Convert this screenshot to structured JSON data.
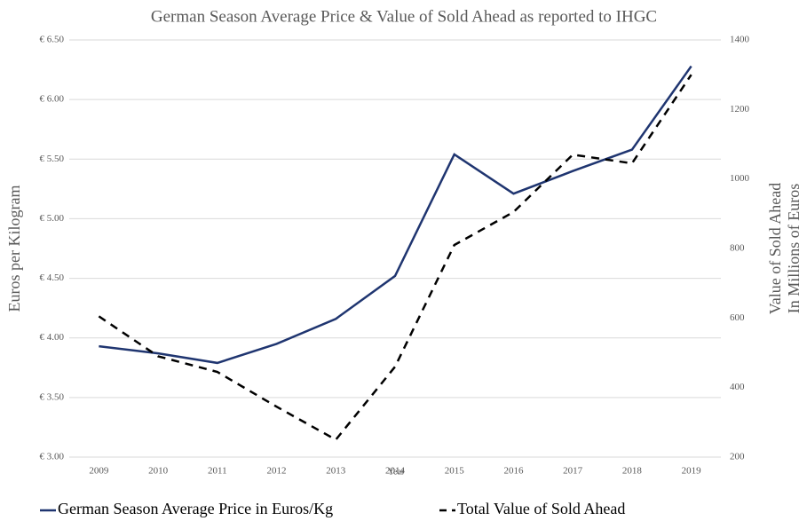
{
  "chart_data": {
    "type": "line",
    "title": "German Season Average Price & Value of Sold Ahead as reported to IHGC",
    "x_label": "Year",
    "y_label": "Euros per Kilogram",
    "y2_label": [
      "Value of Sold Ahead",
      "In Millions of Euros"
    ],
    "categories": [
      "2009",
      "2010",
      "2011",
      "2012",
      "2013",
      "2014",
      "2015",
      "2016",
      "2017",
      "2018",
      "2019"
    ],
    "ylim": [
      3,
      6.5
    ],
    "yticks": [
      {
        "value": 3,
        "label": "€ 3.00"
      },
      {
        "value": 3.5,
        "label": "€ 3.50"
      },
      {
        "value": 4,
        "label": "€ 4.00"
      },
      {
        "value": 4.5,
        "label": "€ 4.50"
      },
      {
        "value": 5,
        "label": "€ 5.00"
      },
      {
        "value": 5.5,
        "label": "€ 5.50"
      },
      {
        "value": 6,
        "label": "€ 6.00"
      },
      {
        "value": 6.5,
        "label": "€ 6.50"
      }
    ],
    "y2lim": [
      200,
      1400
    ],
    "y2ticks": [
      200,
      400,
      600,
      800,
      1000,
      1200,
      1400
    ],
    "grid": true,
    "legend": "bottom",
    "series": [
      {
        "name": "German Season Average Price in Euros/Kg",
        "color": "#1f3570",
        "dash": "solid",
        "values": [
          3.93,
          3.87,
          3.79,
          3.95,
          4.16,
          4.52,
          5.54,
          5.21,
          5.4,
          5.58,
          6.28
        ]
      },
      {
        "name": "Total Value of Sold Ahead",
        "color": "#000000",
        "dash": "dashed",
        "axis": "y2",
        "values": [
          605,
          490,
          445,
          345,
          250,
          460,
          810,
          905,
          1070,
          1045,
          1300
        ]
      }
    ]
  }
}
